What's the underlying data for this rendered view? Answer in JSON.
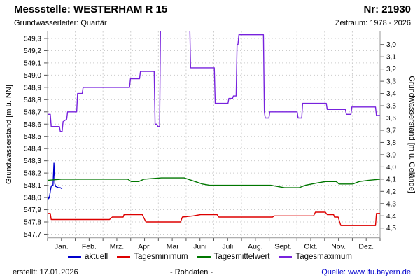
{
  "header": {
    "title": "Messstelle: WESTERHAM R 15",
    "station_number": "Nr: 21930",
    "aquifer": "Grundwasserleiter: Quartär",
    "period": "Zeitraum: 1978 - 2026"
  },
  "footer": {
    "created": "erstellt: 17.01.2026",
    "center": "- Rohdaten -",
    "source": "Quelle: www.lfu.bayern.de"
  },
  "colors": {
    "grid": "#cccccc",
    "axis_border": "#999999",
    "tick": "#555555",
    "text": "#000000",
    "link": "#0000cc"
  },
  "chart_data": {
    "type": "line",
    "title": "Messstelle: WESTERHAM R 15",
    "x_axis": {
      "unit": "day_of_year",
      "range_days": [
        0,
        365
      ],
      "months": [
        "Jan.",
        "Feb.",
        "Mrz.",
        "Apr.",
        "Mai",
        "Juni",
        "Juli",
        "Aug.",
        "Sept.",
        "Okt.",
        "Nov.",
        "Dez."
      ]
    },
    "y_left": {
      "label": "Grundwasserstand [m ü. NN]",
      "range": [
        547.67,
        549.36
      ],
      "tick_step": 0.1,
      "ticks": [
        549.3,
        549.2,
        549.1,
        549.0,
        548.9,
        548.8,
        548.7,
        548.6,
        548.5,
        548.4,
        548.3,
        548.2,
        548.1,
        548.0,
        547.9,
        547.8,
        547.7
      ]
    },
    "y_right": {
      "label": "Grundwasserstand [m u. Gelände]",
      "ground_elevation": 552.25,
      "ticks": [
        3.0,
        3.1,
        3.2,
        3.3,
        3.4,
        3.5,
        3.6,
        3.7,
        3.8,
        3.9,
        4.0,
        4.1,
        4.2,
        4.3,
        4.4,
        4.5
      ]
    },
    "grid": true,
    "legend_position": "bottom",
    "series": [
      {
        "name": "aktuell",
        "color": "#0000cc",
        "points": [
          [
            0,
            548.02
          ],
          [
            1,
            547.99
          ],
          [
            2,
            548.0
          ],
          [
            3,
            548.05
          ],
          [
            4,
            548.09
          ],
          [
            5,
            548.1
          ],
          [
            6,
            548.1
          ],
          [
            7,
            548.28
          ],
          [
            8,
            548.11
          ],
          [
            9,
            548.09
          ],
          [
            12,
            548.08
          ],
          [
            14,
            548.08
          ],
          [
            16,
            548.07
          ]
        ]
      },
      {
        "name": "Tagesminimum",
        "color": "#dd0000",
        "points": [
          [
            0,
            547.87
          ],
          [
            3,
            547.87
          ],
          [
            4,
            547.82
          ],
          [
            68,
            547.82
          ],
          [
            71,
            547.84
          ],
          [
            83,
            547.84
          ],
          [
            84,
            547.86
          ],
          [
            104,
            547.86
          ],
          [
            108,
            547.8
          ],
          [
            146,
            547.8
          ],
          [
            148,
            547.84
          ],
          [
            160,
            547.85
          ],
          [
            168,
            547.86
          ],
          [
            186,
            547.86
          ],
          [
            188,
            547.84
          ],
          [
            247,
            547.84
          ],
          [
            249,
            547.85
          ],
          [
            292,
            547.85
          ],
          [
            294,
            547.88
          ],
          [
            305,
            547.88
          ],
          [
            307,
            547.86
          ],
          [
            314,
            547.86
          ],
          [
            315,
            547.84
          ],
          [
            319,
            547.84
          ],
          [
            322,
            547.77
          ],
          [
            360,
            547.77
          ],
          [
            361,
            547.87
          ],
          [
            365,
            547.87
          ]
        ]
      },
      {
        "name": "Tagesmittelwert",
        "color": "#007700",
        "points": [
          [
            0,
            548.14
          ],
          [
            15,
            548.15
          ],
          [
            88,
            548.15
          ],
          [
            92,
            548.13
          ],
          [
            100,
            548.13
          ],
          [
            106,
            548.15
          ],
          [
            125,
            548.16
          ],
          [
            150,
            548.16
          ],
          [
            158,
            548.14
          ],
          [
            170,
            548.11
          ],
          [
            178,
            548.1
          ],
          [
            245,
            548.1
          ],
          [
            260,
            548.08
          ],
          [
            276,
            548.08
          ],
          [
            283,
            548.1
          ],
          [
            297,
            548.12
          ],
          [
            305,
            548.13
          ],
          [
            317,
            548.13
          ],
          [
            320,
            548.11
          ],
          [
            335,
            548.11
          ],
          [
            342,
            548.13
          ],
          [
            352,
            548.14
          ],
          [
            365,
            548.15
          ]
        ]
      },
      {
        "name": "Tagesmaximum",
        "color": "#7722dd",
        "points": [
          [
            0,
            548.68
          ],
          [
            3,
            548.68
          ],
          [
            4,
            548.58
          ],
          [
            13,
            548.58
          ],
          [
            14,
            548.54
          ],
          [
            16,
            548.54
          ],
          [
            17,
            548.62
          ],
          [
            21,
            548.64
          ],
          [
            22,
            548.7
          ],
          [
            32,
            548.7
          ],
          [
            33,
            548.85
          ],
          [
            38,
            548.85
          ],
          [
            39,
            548.9
          ],
          [
            90,
            548.9
          ],
          [
            91,
            548.97
          ],
          [
            101,
            548.97
          ],
          [
            102,
            549.03
          ],
          [
            117,
            549.03
          ],
          [
            118,
            548.6
          ],
          [
            120,
            548.6
          ],
          [
            121,
            548.58
          ],
          [
            123,
            548.58
          ],
          [
            124,
            549.45
          ],
          [
            156,
            549.45
          ],
          [
            157,
            549.06
          ],
          [
            183,
            549.06
          ],
          [
            184,
            548.77
          ],
          [
            198,
            548.77
          ],
          [
            199,
            548.81
          ],
          [
            203,
            548.81
          ],
          [
            204,
            548.83
          ],
          [
            207,
            548.83
          ],
          [
            208,
            549.25
          ],
          [
            209,
            549.25
          ],
          [
            210,
            549.33
          ],
          [
            237,
            549.33
          ],
          [
            238,
            548.7
          ],
          [
            239,
            548.65
          ],
          [
            243,
            548.65
          ],
          [
            244,
            548.7
          ],
          [
            274,
            548.7
          ],
          [
            275,
            548.65
          ],
          [
            279,
            548.65
          ],
          [
            280,
            548.77
          ],
          [
            306,
            548.77
          ],
          [
            307,
            548.72
          ],
          [
            327,
            548.72
          ],
          [
            328,
            548.68
          ],
          [
            333,
            548.68
          ],
          [
            334,
            548.74
          ],
          [
            360,
            548.74
          ],
          [
            361,
            548.67
          ],
          [
            365,
            548.67
          ]
        ]
      }
    ]
  }
}
